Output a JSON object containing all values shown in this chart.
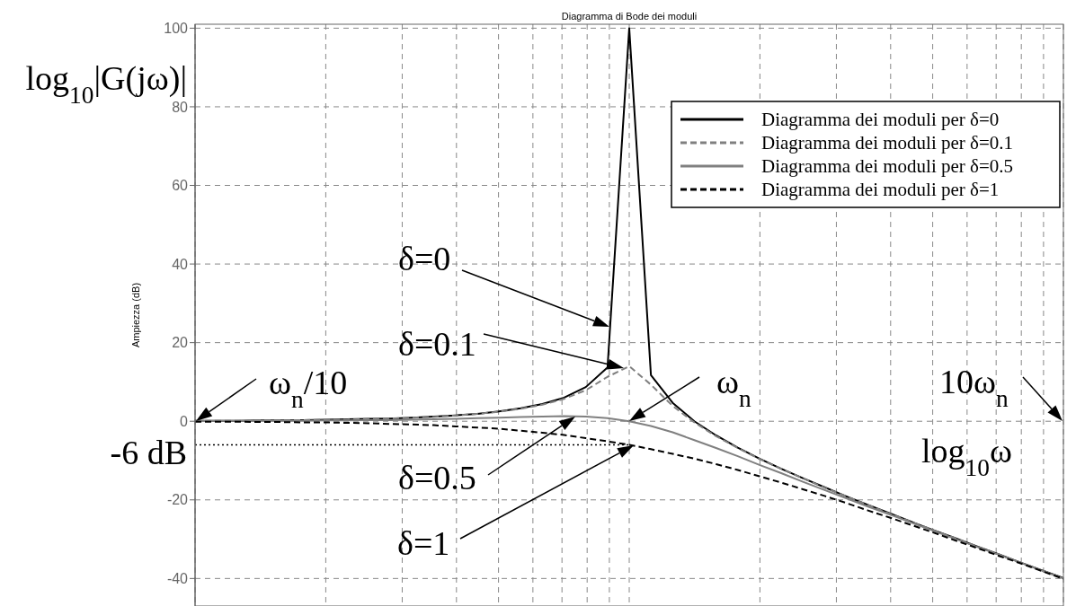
{
  "chart_data": {
    "type": "line",
    "title": "Diagramma di Bode dei moduli",
    "ylabel": "Ampiezza (dB)",
    "xlabel": "log$_{10}$ω",
    "grid": true,
    "legend": "top right",
    "tick_labels": "y",
    "categories": [
      null,
      null,
      null,
      null,
      null,
      null,
      null,
      null,
      null,
      null,
      null,
      null,
      null,
      null,
      null,
      null,
      null,
      null,
      null,
      null,
      null,
      null,
      null,
      null,
      null,
      null,
      null,
      null,
      null,
      null,
      null,
      null,
      null,
      null,
      null,
      null,
      null,
      null,
      null,
      null,
      null
    ],
    "ylim": [
      -47,
      101
    ],
    "yticks": [
      -40,
      -20,
      0,
      20,
      40,
      60,
      80,
      100
    ],
    "series": [
      {
        "name": "Diagramma dei moduli per δ=0",
        "color": "#000000",
        "line_style": "solid",
        "values": [
          0.1,
          0.1,
          0.1,
          0.2,
          0.2,
          0.3,
          0.4,
          0.5,
          0.6,
          0.7,
          0.9,
          1.2,
          1.5,
          1.9,
          2.5,
          3.3,
          4.4,
          6.0,
          8.7,
          13.7,
          100,
          11.7,
          4.7,
          0.0,
          -3.6,
          -6.7,
          -9.5,
          -12.1,
          -14.5,
          -16.8,
          -19.1,
          -21.3,
          -23.4,
          -25.6,
          -27.7,
          -29.7,
          -31.8,
          -33.8,
          -35.9,
          -37.9,
          -39.9
        ]
      },
      {
        "name": "Diagramma dei moduli per δ=0.1",
        "color": "#808080",
        "line_style": "dashed",
        "values": [
          0.1,
          0.1,
          0.1,
          0.2,
          0.2,
          0.3,
          0.4,
          0.4,
          0.6,
          0.7,
          0.9,
          1.1,
          1.5,
          1.9,
          2.4,
          3.2,
          4.2,
          5.7,
          7.9,
          11.3,
          14.0,
          9.3,
          3.9,
          -0.3,
          -3.8,
          -6.8,
          -9.6,
          -12.1,
          -14.5,
          -16.9,
          -19.1,
          -21.3,
          -23.5,
          -25.6,
          -27.7,
          -29.7,
          -31.8,
          -33.8,
          -35.9,
          -37.9,
          -39.9
        ]
      },
      {
        "name": "Diagramma dei moduli per δ=0.5",
        "color": "#808080",
        "line_style": "solid",
        "values": [
          0.0,
          0.1,
          0.1,
          0.1,
          0.1,
          0.1,
          0.2,
          0.2,
          0.3,
          0.3,
          0.4,
          0.5,
          0.6,
          0.8,
          0.9,
          1.1,
          1.2,
          1.3,
          1.2,
          0.8,
          0.0,
          -1.2,
          -2.8,
          -4.8,
          -6.8,
          -8.9,
          -11.1,
          -13.2,
          -15.4,
          -17.5,
          -19.6,
          -21.7,
          -23.7,
          -25.8,
          -27.8,
          -29.9,
          -31.9,
          -33.9,
          -35.9,
          -38.0,
          -40.0
        ]
      },
      {
        "name": "Diagramma dei moduli per δ=1",
        "color": "#000000",
        "line_style": "dashed",
        "values": [
          -0.1,
          -0.1,
          -0.1,
          -0.2,
          -0.2,
          -0.3,
          -0.3,
          -0.4,
          -0.5,
          -0.7,
          -0.8,
          -1.0,
          -1.3,
          -1.6,
          -1.9,
          -2.4,
          -2.9,
          -3.5,
          -4.3,
          -5.1,
          -6.0,
          -7.1,
          -8.3,
          -9.5,
          -10.9,
          -12.4,
          -14.0,
          -15.6,
          -17.3,
          -19.0,
          -20.8,
          -22.7,
          -24.5,
          -26.4,
          -28.3,
          -30.3,
          -32.2,
          -34.2,
          -36.1,
          -38.1,
          -40.1
        ]
      },
      {
        "color": "#000000",
        "line_style": "dotted",
        "values": [
          -6,
          -6,
          -6,
          -6,
          -6,
          -6,
          -6,
          -6,
          -6,
          -6,
          -6,
          -6,
          -6,
          -6,
          -6,
          -6,
          -6,
          -6,
          -6,
          -6,
          -6,
          null,
          null,
          null,
          null,
          null,
          null,
          null,
          null,
          null,
          null,
          null,
          null,
          null,
          null,
          null,
          null,
          null,
          null,
          null,
          null
        ]
      }
    ],
    "annotations": [
      "log$_{10}$|G(jω)|",
      "δ=0",
      "δ=0.1",
      "δ=0.5",
      "δ=1",
      "ω$_{n}$/10",
      "ω$_{n}$",
      "10ω$_{n}$",
      "-6 dB"
    ]
  }
}
